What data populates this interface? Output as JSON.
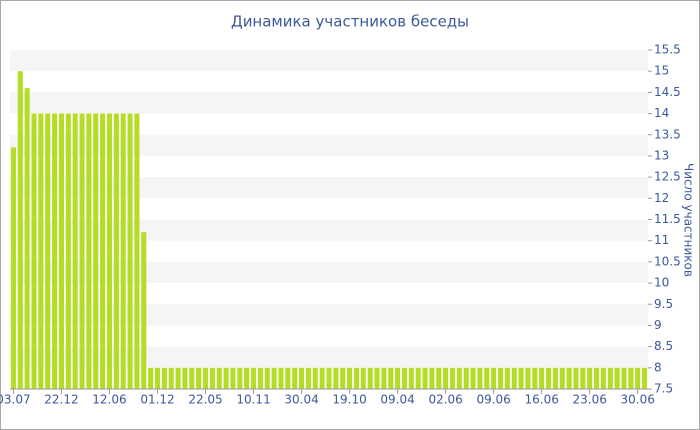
{
  "chart_data": {
    "type": "bar",
    "title": "Динамика участников беседы",
    "y_label": "Число участников",
    "categories": [
      "03.07",
      null,
      null,
      null,
      null,
      null,
      null,
      "22.12",
      null,
      null,
      null,
      null,
      null,
      null,
      "12.06",
      null,
      null,
      null,
      null,
      null,
      null,
      "01.12",
      null,
      null,
      null,
      null,
      null,
      null,
      "22.05",
      null,
      null,
      null,
      null,
      null,
      null,
      "10.11",
      null,
      null,
      null,
      null,
      null,
      null,
      "30.04",
      null,
      null,
      null,
      null,
      null,
      null,
      "19.10",
      null,
      null,
      null,
      null,
      null,
      null,
      "09.04",
      null,
      null,
      null,
      null,
      null,
      null,
      "02.06",
      null,
      null,
      null,
      null,
      null,
      null,
      "09.06",
      null,
      null,
      null,
      null,
      null,
      null,
      "16.06",
      null,
      null,
      null,
      null,
      null,
      null,
      "23.06",
      null,
      null,
      null,
      null,
      null,
      null,
      "30.06",
      null
    ],
    "values": [
      13.2,
      15,
      14.6,
      14,
      14,
      14,
      14,
      14,
      14,
      14,
      14,
      14,
      14,
      14,
      14,
      14,
      14,
      14,
      14,
      11.2,
      8,
      8,
      8,
      8,
      8,
      8,
      8,
      8,
      8,
      8,
      8,
      8,
      8,
      8,
      8,
      8,
      8,
      8,
      8,
      8,
      8,
      8,
      8,
      8,
      8,
      8,
      8,
      8,
      8,
      8,
      8,
      8,
      8,
      8,
      8,
      8,
      8,
      8,
      8,
      8,
      8,
      8,
      8,
      8,
      8,
      8,
      8,
      8,
      8,
      8,
      8,
      8,
      8,
      8,
      8,
      8,
      8,
      8,
      8,
      8,
      8,
      8,
      8,
      8,
      8,
      8,
      8,
      8,
      8,
      8,
      8,
      8,
      8
    ],
    "color": "#b5dc26",
    "ylim": [
      7.5,
      15.5
    ],
    "yticks": [
      7.5,
      8,
      8.5,
      9,
      9.5,
      10,
      10.5,
      11,
      11.5,
      12,
      12.5,
      13,
      13.5,
      14,
      14.5,
      15,
      15.5
    ],
    "grid": true
  }
}
